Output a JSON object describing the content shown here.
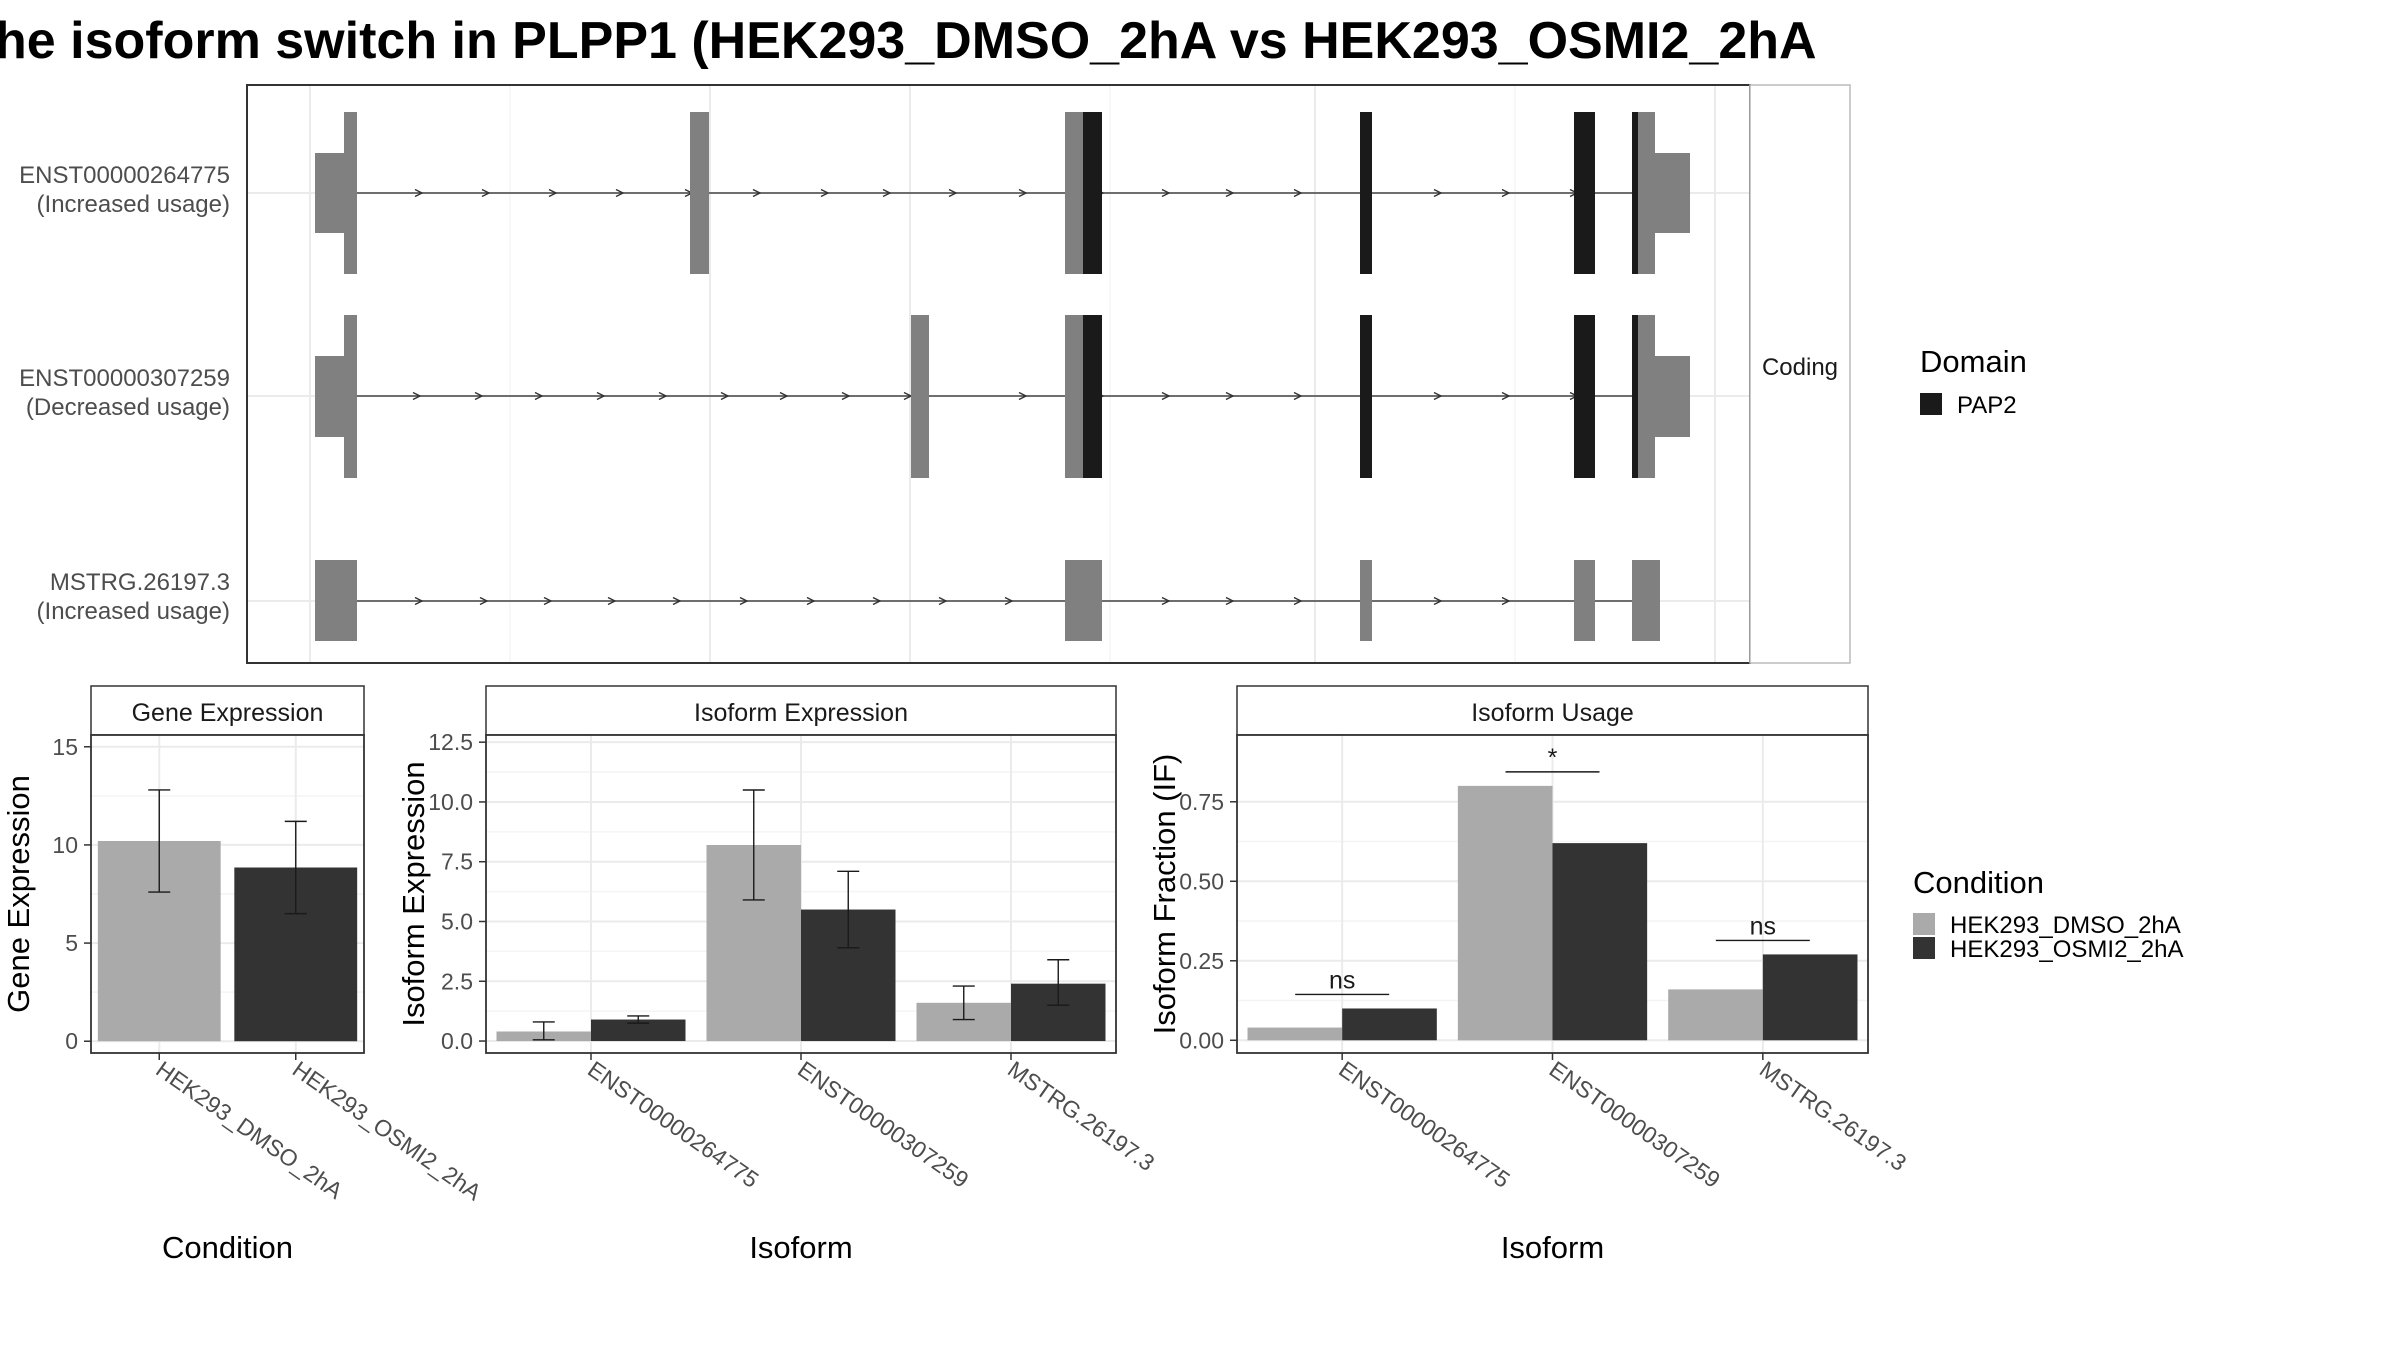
{
  "title": "he isoform switch in PLPP1 (HEK293_DMSO_2hA vs HEK293_OSMI2_2hA",
  "colors": {
    "dmso": "#aaaaaa",
    "osmi": "#333333",
    "utr": "#808080",
    "pap2": "#1a1a1a",
    "grid": "#ebebeb",
    "frame": "#333333"
  },
  "structure": {
    "strip_label": "Coding",
    "transcripts": [
      {
        "id": "ENST00000264775",
        "note": "(Increased usage)"
      },
      {
        "id": "ENST00000307259",
        "note": "(Decreased usage)"
      },
      {
        "id": "MSTRG.26197.3",
        "note": "(Increased usage)"
      }
    ],
    "legend_title": "Domain",
    "legend_item": "PAP2"
  },
  "chart_data": [
    {
      "type": "bar",
      "title": "Gene Expression",
      "xlabel": "Condition",
      "ylabel": "Gene Expression",
      "categories": [
        "HEK293_DMSO_2hA",
        "HEK293_OSMI2_2hA"
      ],
      "values": [
        10.2,
        8.85
      ],
      "error": [
        [
          7.6,
          12.8
        ],
        [
          6.5,
          11.2
        ]
      ],
      "ylim": [
        -0.6,
        15.6
      ],
      "yticks": [
        "0",
        "5",
        "10",
        "15"
      ]
    },
    {
      "type": "bar",
      "title": "Isoform Expression",
      "xlabel": "Isoform",
      "ylabel": "Isoform Expression",
      "categories": [
        "ENST00000264775",
        "ENST00000307259",
        "MSTRG.26197.3"
      ],
      "series": [
        {
          "name": "HEK293_DMSO_2hA",
          "values": [
            0.4,
            8.2,
            1.6
          ],
          "error": [
            [
              0.05,
              0.8
            ],
            [
              5.9,
              10.5
            ],
            [
              0.9,
              2.3
            ]
          ]
        },
        {
          "name": "HEK293_OSMI2_2hA",
          "values": [
            0.9,
            5.5,
            2.4
          ],
          "error": [
            [
              0.75,
              1.05
            ],
            [
              3.9,
              7.1
            ],
            [
              1.5,
              3.4
            ]
          ]
        }
      ],
      "ylim": [
        -0.5,
        12.8
      ],
      "yticks": [
        "0.0",
        "2.5",
        "5.0",
        "7.5",
        "10.0",
        "12.5"
      ]
    },
    {
      "type": "bar",
      "title": "Isoform Usage",
      "xlabel": "Isoform",
      "ylabel": "Isoform Fraction (IF)",
      "categories": [
        "ENST00000264775",
        "ENST00000307259",
        "MSTRG.26197.3"
      ],
      "series": [
        {
          "name": "HEK293_DMSO_2hA",
          "values": [
            0.04,
            0.8,
            0.16
          ]
        },
        {
          "name": "HEK293_OSMI2_2hA",
          "values": [
            0.1,
            0.62,
            0.27
          ]
        }
      ],
      "significance": [
        "ns",
        "*",
        "ns"
      ],
      "ylim": [
        -0.04,
        0.96
      ],
      "yticks": [
        "0.00",
        "0.25",
        "0.50",
        "0.75"
      ]
    }
  ],
  "condition_legend": {
    "title": "Condition",
    "items": [
      "HEK293_DMSO_2hA",
      "HEK293_OSMI2_2hA"
    ]
  }
}
